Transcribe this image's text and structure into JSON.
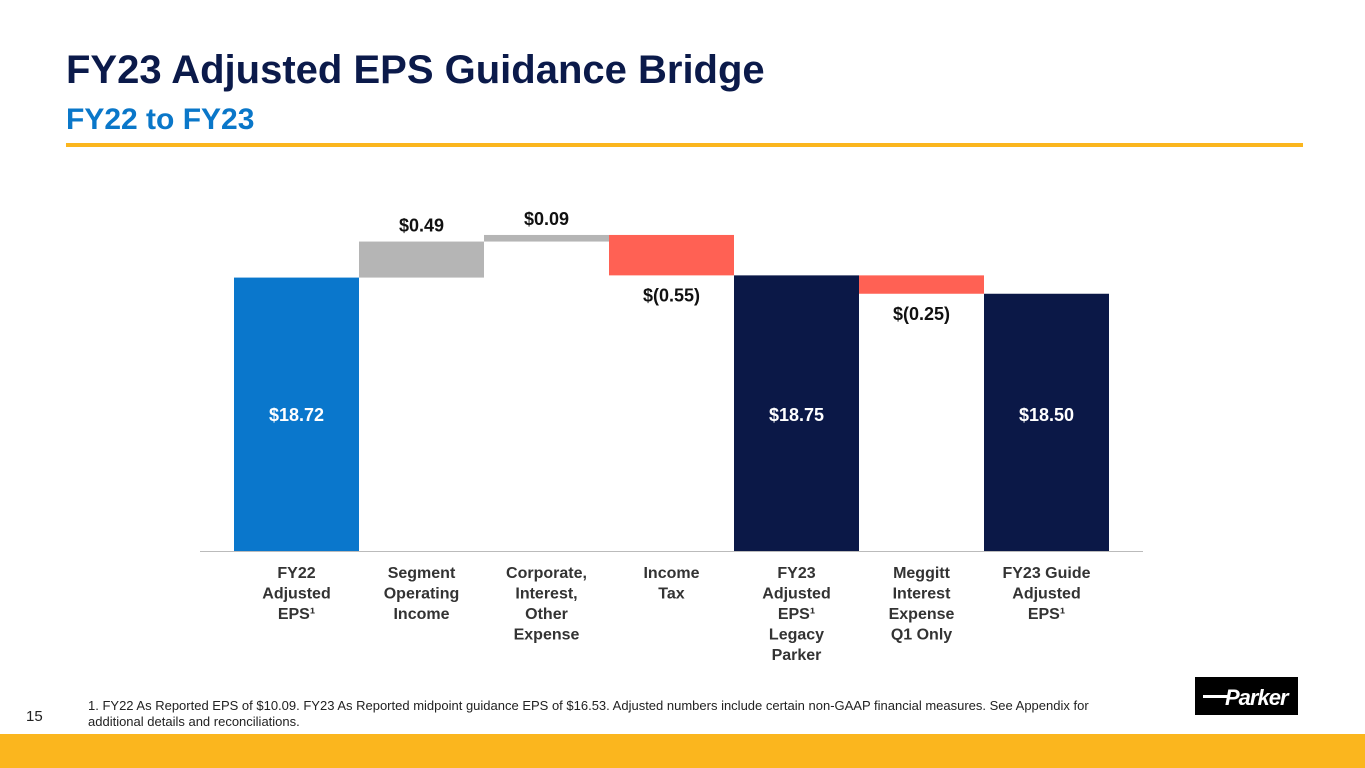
{
  "header": {
    "title": "FY23 Adjusted EPS Guidance Bridge",
    "subtitle": "FY22 to FY23"
  },
  "footer": {
    "page_number": "15",
    "footnote": "1. FY22 As Reported EPS of $10.09. FY23 As Reported midpoint guidance EPS of $16.53.  Adjusted numbers include certain non-GAAP financial measures. See Appendix for additional details and reconciliations.",
    "logo_text": "Parker"
  },
  "colors": {
    "total_fy22": "#0a77cc",
    "total_fy23": "#0b1847",
    "increase": "#b5b5b5",
    "decrease": "#ff6154",
    "accent": "#fbb61e"
  },
  "chart_data": {
    "type": "waterfall",
    "categories": [
      [
        "FY22",
        "Adjusted",
        "EPS¹"
      ],
      [
        "Segment",
        "Operating",
        "Income"
      ],
      [
        "Corporate,",
        "Interest,",
        "Other",
        "Expense"
      ],
      [
        "Income",
        "Tax"
      ],
      [
        "FY23",
        "Adjusted",
        "EPS¹",
        "Legacy",
        "Parker"
      ],
      [
        "Meggitt",
        "Interest",
        "Expense",
        "Q1 Only"
      ],
      [
        "FY23 Guide",
        "Adjusted",
        "EPS¹"
      ]
    ],
    "values": [
      18.72,
      0.49,
      0.09,
      -0.55,
      18.75,
      -0.25,
      18.5
    ],
    "kinds": [
      "total",
      "delta",
      "delta",
      "delta",
      "total",
      "delta",
      "total"
    ],
    "labels": [
      "$18.72",
      "$0.49",
      "$0.09",
      "$(0.55)",
      "$18.75",
      "$(0.25)",
      "$18.50"
    ],
    "ylim": [
      15,
      19.5
    ],
    "grid": false
  }
}
